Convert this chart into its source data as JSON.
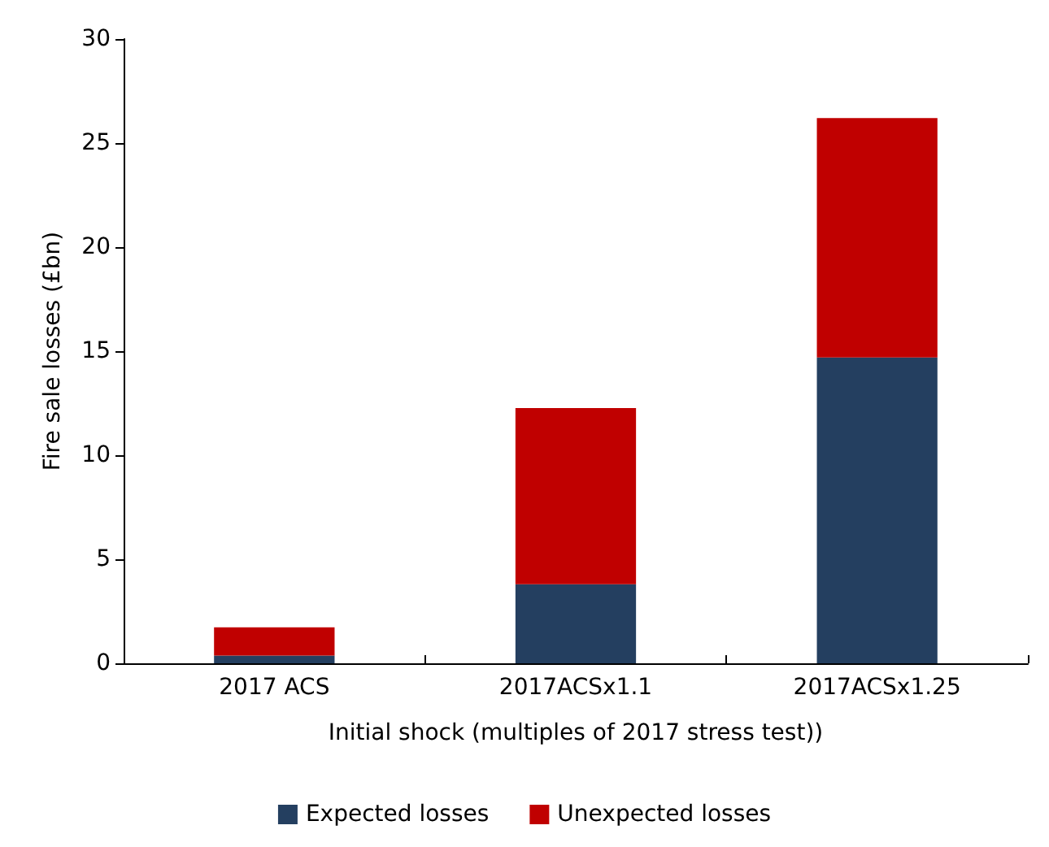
{
  "chart_data": {
    "type": "bar",
    "stacked": true,
    "xlabel": "Initial shock (multiples of 2017 stress test))",
    "ylabel": "Fire sale losses (£bn)",
    "categories": [
      "2017 ACS",
      "2017ACSx1.1",
      "2017ACSx1.25"
    ],
    "series": [
      {
        "name": "Expected losses",
        "color": "#243f60",
        "values": [
          0.37,
          3.8,
          14.7
        ]
      },
      {
        "name": "Unexpected losses",
        "color": "#c00000",
        "values": [
          1.36,
          8.47,
          11.5
        ]
      }
    ],
    "ylim": [
      0,
      30
    ],
    "yticks": [
      0,
      5,
      10,
      15,
      20,
      25,
      30
    ],
    "grid": false,
    "legend": "bottom"
  }
}
